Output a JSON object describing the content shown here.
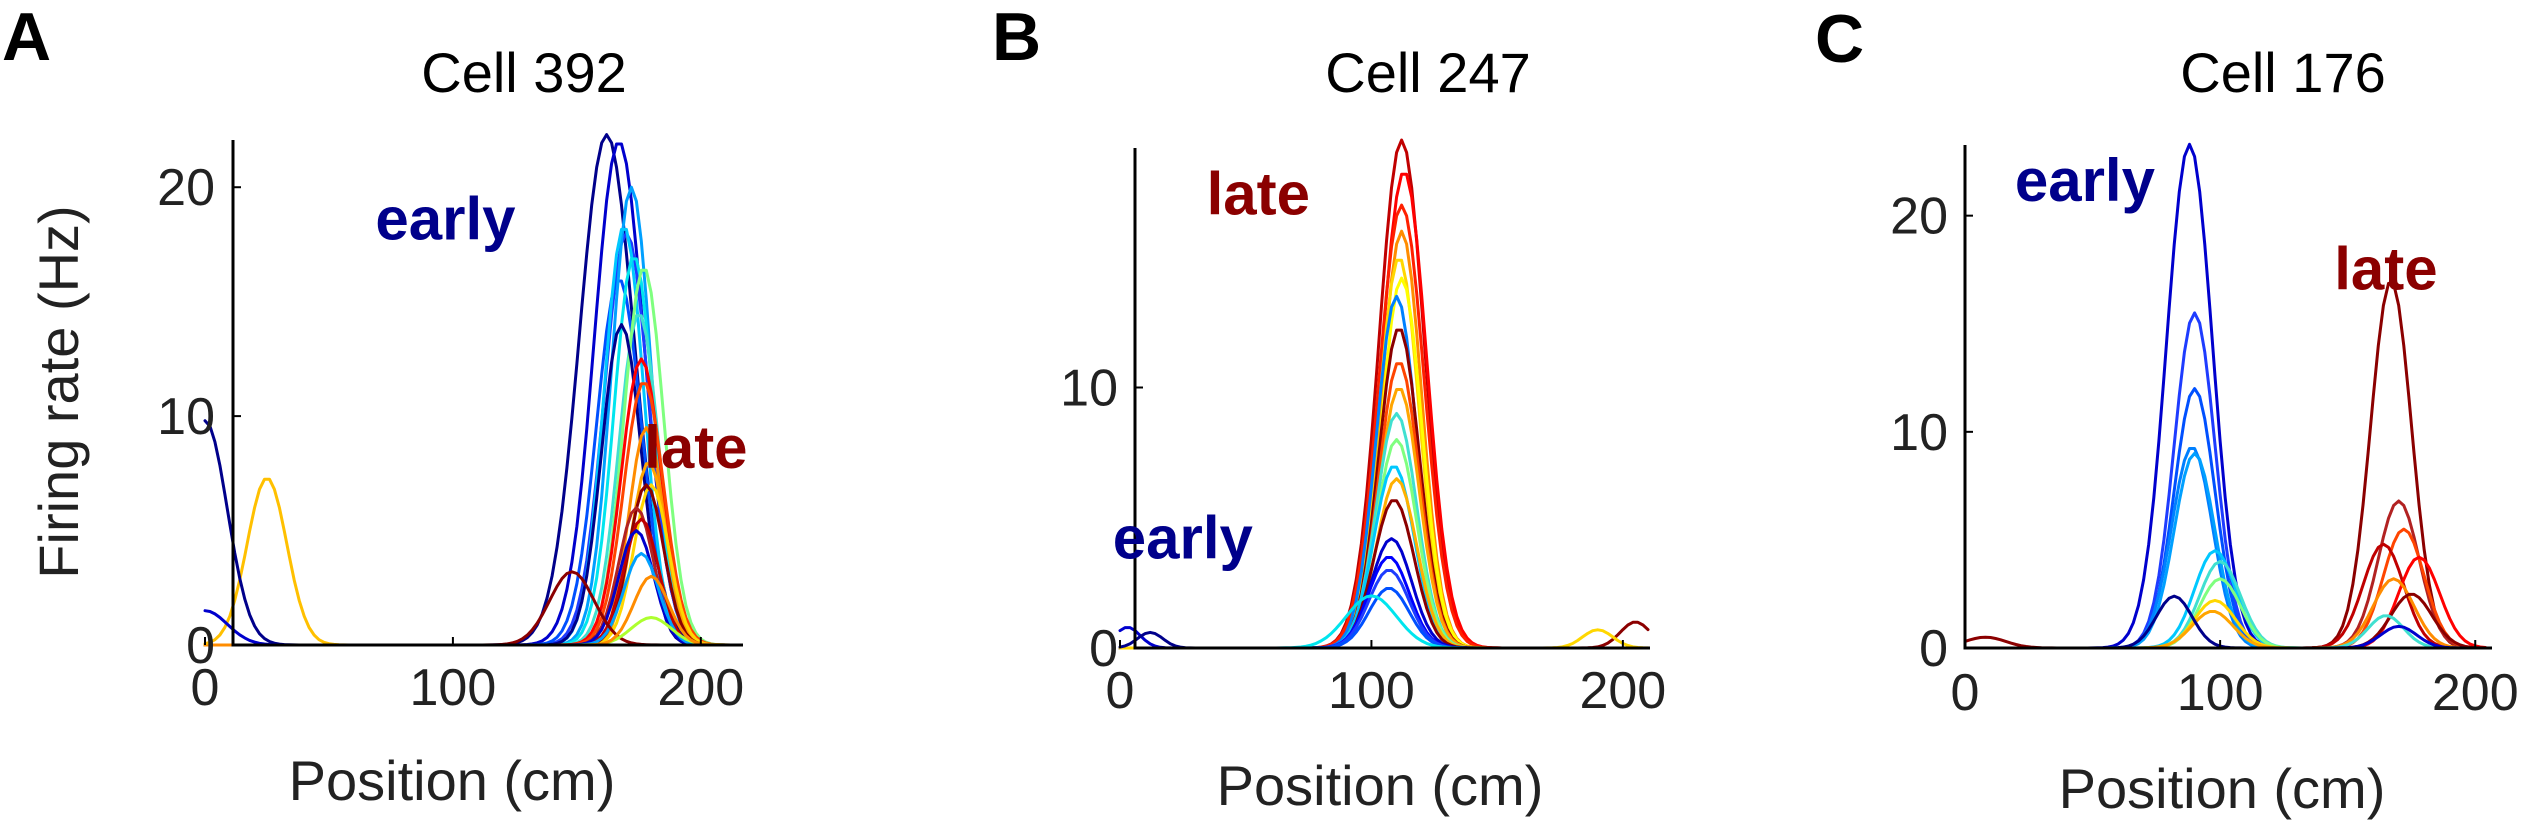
{
  "chart_data": [
    {
      "type": "line",
      "panel": "A",
      "title": "Cell 392",
      "xlabel": "Position (cm)",
      "ylabel": "Firing rate (Hz)",
      "xlim": [
        0,
        215
      ],
      "ylim": [
        0,
        22.5
      ],
      "xticks": [
        0,
        100,
        200
      ],
      "yticks": [
        0,
        10,
        20
      ],
      "annotations": [
        {
          "text": "early",
          "color": "#00008b",
          "x": 97,
          "y": 18.6
        },
        {
          "text": "late",
          "color": "#8b0000",
          "x": 198,
          "y": 8.6
        }
      ],
      "series": [
        {
          "color": "#00008b",
          "peak": 162,
          "amp": 22.3,
          "width": 11
        },
        {
          "color": "#0000cd",
          "peak": 167,
          "amp": 22.0,
          "width": 10
        },
        {
          "color": "#1e3cff",
          "peak": 170,
          "amp": 18.0,
          "width": 9
        },
        {
          "color": "#0050ff",
          "peak": 167,
          "amp": 16.0,
          "width": 9
        },
        {
          "color": "#00a0ff",
          "peak": 172,
          "amp": 20.0,
          "width": 8
        },
        {
          "color": "#00c8ff",
          "peak": 169,
          "amp": 18.3,
          "width": 8
        },
        {
          "color": "#00e5ee",
          "peak": 173,
          "amp": 17.0,
          "width": 8
        },
        {
          "color": "#40e0d0",
          "peak": 175,
          "amp": 14.5,
          "width": 8
        },
        {
          "color": "#7fff7f",
          "peak": 177,
          "amp": 16.5,
          "width": 8
        },
        {
          "color": "#00008b",
          "peak": 168,
          "amp": 14.0,
          "width": 8
        },
        {
          "color": "#ff0000",
          "peak": 176,
          "amp": 12.5,
          "width": 8
        },
        {
          "color": "#ff4500",
          "peak": 177,
          "amp": 11.5,
          "width": 8
        },
        {
          "color": "#ff8c00",
          "peak": 178,
          "amp": 9.5,
          "width": 7
        },
        {
          "color": "#ffa500",
          "peak": 179,
          "amp": 8.0,
          "width": 7
        },
        {
          "color": "#ffd700",
          "peak": 180,
          "amp": 7.0,
          "width": 7
        },
        {
          "color": "#8b0000",
          "peak": 178,
          "amp": 7.0,
          "width": 7
        },
        {
          "color": "#b22222",
          "peak": 174,
          "amp": 6.0,
          "width": 7
        },
        {
          "color": "#c00000",
          "peak": 176,
          "amp": 5.5,
          "width": 7
        },
        {
          "color": "#0000cd",
          "peak": 174,
          "amp": 5.0,
          "width": 7
        },
        {
          "color": "#00a0ff",
          "peak": 176,
          "amp": 4.0,
          "width": 7
        },
        {
          "color": "#8b0000",
          "peak": 148,
          "amp": 3.2,
          "width": 9
        },
        {
          "color": "#adff2f",
          "peak": 180,
          "amp": 1.2,
          "width": 8
        },
        {
          "color": "#ff8c00",
          "peak": 180,
          "amp": 3.0,
          "width": 7
        },
        {
          "color": "#ffc000",
          "peak": 25,
          "amp": 7.3,
          "width": 8
        },
        {
          "color": "#00008b",
          "peak": 0,
          "amp": 9.8,
          "width": 9
        },
        {
          "color": "#0000cd",
          "peak": 0,
          "amp": 1.5,
          "width": 9
        }
      ]
    },
    {
      "type": "line",
      "panel": "B",
      "title": "Cell 247",
      "xlabel": "Position (cm)",
      "ylabel": "",
      "xlim": [
        0,
        210
      ],
      "ylim": [
        0,
        19.5
      ],
      "xticks": [
        0,
        100,
        200
      ],
      "yticks": [
        0,
        10
      ],
      "annotations": [
        {
          "text": "late",
          "color": "#8b0000",
          "x": 55,
          "y": 17.4
        },
        {
          "text": "early",
          "color": "#00008b",
          "x": 25,
          "y": 4.2
        }
      ],
      "series": [
        {
          "color": "#c00000",
          "peak": 112,
          "amp": 19.5,
          "width": 9
        },
        {
          "color": "#ff0000",
          "peak": 113,
          "amp": 18.3,
          "width": 9
        },
        {
          "color": "#ff2000",
          "peak": 112,
          "amp": 17.0,
          "width": 9
        },
        {
          "color": "#ff8c00",
          "peak": 112,
          "amp": 16.0,
          "width": 8
        },
        {
          "color": "#ffd700",
          "peak": 111,
          "amp": 15.0,
          "width": 8
        },
        {
          "color": "#ffff00",
          "peak": 112,
          "amp": 14.2,
          "width": 8
        },
        {
          "color": "#0080ff",
          "peak": 110,
          "amp": 13.5,
          "width": 8
        },
        {
          "color": "#8b0000",
          "peak": 111,
          "amp": 12.3,
          "width": 8
        },
        {
          "color": "#ff4500",
          "peak": 111,
          "amp": 11.0,
          "width": 8
        },
        {
          "color": "#ffa500",
          "peak": 111,
          "amp": 10.0,
          "width": 8
        },
        {
          "color": "#40e0d0",
          "peak": 110,
          "amp": 9.0,
          "width": 8
        },
        {
          "color": "#7fff7f",
          "peak": 110,
          "amp": 8.0,
          "width": 8
        },
        {
          "color": "#00c8ff",
          "peak": 109,
          "amp": 7.0,
          "width": 8
        },
        {
          "color": "#ffb000",
          "peak": 110,
          "amp": 6.5,
          "width": 8
        },
        {
          "color": "#8b0000",
          "peak": 109,
          "amp": 5.7,
          "width": 8
        },
        {
          "color": "#0000cd",
          "peak": 108,
          "amp": 4.2,
          "width": 8
        },
        {
          "color": "#0000ff",
          "peak": 107,
          "amp": 3.5,
          "width": 8
        },
        {
          "color": "#1e3cff",
          "peak": 107,
          "amp": 3.0,
          "width": 8
        },
        {
          "color": "#0050ff",
          "peak": 107,
          "amp": 2.3,
          "width": 8
        },
        {
          "color": "#00e5ee",
          "peak": 100,
          "amp": 2.0,
          "width": 10
        },
        {
          "color": "#8b0000",
          "peak": 205,
          "amp": 1.0,
          "width": 6
        },
        {
          "color": "#ffd700",
          "peak": 190,
          "amp": 0.7,
          "width": 6
        },
        {
          "color": "#0000cd",
          "peak": 3,
          "amp": 0.8,
          "width": 5
        },
        {
          "color": "#00008b",
          "peak": 12,
          "amp": 0.6,
          "width": 5
        }
      ]
    },
    {
      "type": "line",
      "panel": "C",
      "title": "Cell 176",
      "xlabel": "Position (cm)",
      "ylabel": "",
      "xlim": [
        0,
        205
      ],
      "ylim": [
        0,
        23.5
      ],
      "xticks": [
        0,
        100,
        200
      ],
      "yticks": [
        0,
        10,
        20
      ],
      "annotations": [
        {
          "text": "early",
          "color": "#00008b",
          "x": 47,
          "y": 21.6
        },
        {
          "text": "late",
          "color": "#8b0000",
          "x": 165,
          "y": 17.5
        }
      ],
      "series": [
        {
          "color": "#0000cd",
          "peak": 88,
          "amp": 23.3,
          "width": 9
        },
        {
          "color": "#1e3cff",
          "peak": 90,
          "amp": 15.5,
          "width": 8
        },
        {
          "color": "#0050ff",
          "peak": 90,
          "amp": 12.0,
          "width": 8
        },
        {
          "color": "#0080ff",
          "peak": 89,
          "amp": 9.3,
          "width": 8
        },
        {
          "color": "#00a0ff",
          "peak": 90,
          "amp": 9.0,
          "width": 8
        },
        {
          "color": "#00c8ff",
          "peak": 98,
          "amp": 4.5,
          "width": 8
        },
        {
          "color": "#40e0d0",
          "peak": 100,
          "amp": 4.0,
          "width": 8
        },
        {
          "color": "#7fff7f",
          "peak": 100,
          "amp": 3.2,
          "width": 8
        },
        {
          "color": "#ffd700",
          "peak": 98,
          "amp": 2.2,
          "width": 8
        },
        {
          "color": "#ffa500",
          "peak": 97,
          "amp": 1.7,
          "width": 8
        },
        {
          "color": "#00008b",
          "peak": 82,
          "amp": 2.4,
          "width": 7
        },
        {
          "color": "#8b0000",
          "peak": 167,
          "amp": 17.0,
          "width": 8
        },
        {
          "color": "#b22222",
          "peak": 170,
          "amp": 6.8,
          "width": 8
        },
        {
          "color": "#ff4500",
          "peak": 172,
          "amp": 5.5,
          "width": 8
        },
        {
          "color": "#c00000",
          "peak": 164,
          "amp": 4.8,
          "width": 8
        },
        {
          "color": "#ff0000",
          "peak": 178,
          "amp": 4.2,
          "width": 8
        },
        {
          "color": "#ff8c00",
          "peak": 168,
          "amp": 3.2,
          "width": 8
        },
        {
          "color": "#8b0000",
          "peak": 175,
          "amp": 2.5,
          "width": 8
        },
        {
          "color": "#40e0d0",
          "peak": 165,
          "amp": 1.5,
          "width": 7
        },
        {
          "color": "#0000cd",
          "peak": 170,
          "amp": 1.0,
          "width": 7
        },
        {
          "color": "#8b0000",
          "peak": 8,
          "amp": 0.5,
          "width": 8
        }
      ]
    }
  ]
}
